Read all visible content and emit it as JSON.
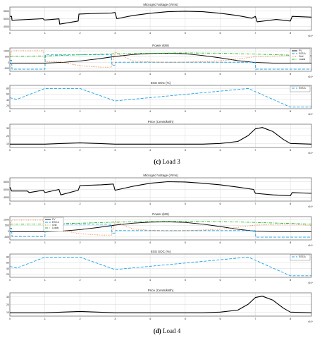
{
  "figures": [
    {
      "caption_label": "(c)",
      "caption_text": "Load 3",
      "panels": [
        {
          "title": "Microgrid Voltage (Vrms)",
          "yticks": [
            "5500",
            "5000",
            "4500"
          ],
          "xticks": [
            "0",
            "1",
            "2",
            "3",
            "4",
            "5",
            "6",
            "7",
            "8"
          ],
          "exponent": "×10⁴"
        },
        {
          "title": "Power (kW)",
          "yticks": [
            "1000",
            "500",
            "0",
            "-500"
          ],
          "xticks": [
            "0",
            "1",
            "2",
            "3",
            "4",
            "5",
            "6",
            "7",
            "8"
          ],
          "exponent": "×10⁴",
          "legend": [
            "PV",
            "ESS A",
            "Grid",
            "Loads"
          ]
        },
        {
          "title": "ESS SOC (%)",
          "yticks": [
            "80",
            "60",
            "40",
            "20"
          ],
          "xticks": [
            "0",
            "1",
            "2",
            "3",
            "4",
            "5",
            "6",
            "7",
            "8"
          ],
          "exponent": "×10⁴",
          "legend": [
            "ESS A"
          ]
        },
        {
          "title": "Price (Cents/kWh)",
          "yticks": [
            "30",
            "20",
            "10"
          ],
          "xticks": [
            "0",
            "1",
            "2",
            "3",
            "4",
            "5",
            "6",
            "7",
            "8"
          ],
          "exponent": "×10⁴"
        }
      ]
    },
    {
      "caption_label": "(d)",
      "caption_text": "Load 4",
      "panels": [
        {
          "title": "Microgrid Voltage (Vrms)",
          "yticks": [
            "5500",
            "5000",
            "4500"
          ],
          "xticks": [
            "0",
            "1",
            "2",
            "3",
            "4",
            "5",
            "6",
            "7",
            "8"
          ],
          "exponent": "×10⁴"
        },
        {
          "title": "Power (kW)",
          "yticks": [
            "1000",
            "500",
            "0",
            "-500"
          ],
          "xticks": [
            "0",
            "1",
            "2",
            "3",
            "4",
            "5",
            "6",
            "7",
            "8"
          ],
          "exponent": "×10⁴",
          "legend": [
            "PV",
            "ESS A",
            "Grid",
            "Loads"
          ]
        },
        {
          "title": "ESS SOC (%)",
          "yticks": [
            "80",
            "60",
            "40",
            "20"
          ],
          "xticks": [
            "0",
            "1",
            "2",
            "3",
            "4",
            "5",
            "6",
            "7",
            "8"
          ],
          "exponent": "×10⁴",
          "legend": [
            "ESS A"
          ]
        },
        {
          "title": "Price (Cents/kWh)",
          "yticks": [
            "30",
            "20",
            "10"
          ],
          "xticks": [
            "0",
            "1",
            "2",
            "3",
            "4",
            "5",
            "6",
            "7",
            "8"
          ],
          "exponent": "×10⁴"
        }
      ]
    }
  ],
  "colors": {
    "pv": "#000000",
    "ess": "#1aa3e8",
    "grid": "#ee7733",
    "loads": "#22bb22",
    "line": "#000000",
    "gridline": "#d9d9d9"
  },
  "chart_data": [
    {
      "type": "line",
      "title": "Microgrid Voltage (Vrms)",
      "figure": "(c)",
      "xlim": [
        0,
        8.6
      ],
      "ylim": [
        4300,
        5800
      ],
      "grid": true,
      "series": [
        {
          "x": [
            0,
            0.05,
            0.06,
            0.95,
            0.97,
            1.0,
            1.4,
            1.42,
            1.95,
            1.97,
            2.6,
            2.9,
            3.0,
            3.05,
            3.5,
            4.0,
            4.5,
            5.0,
            5.5,
            6.0,
            6.5,
            6.9,
            7.0,
            7.05,
            7.6,
            8.0,
            8.05,
            8.6
          ],
          "y": [
            5200,
            5200,
            4950,
            5050,
            4980,
            4970,
            5040,
            4700,
            4900,
            5350,
            5400,
            5420,
            5450,
            5050,
            5250,
            5400,
            5500,
            5530,
            5500,
            5400,
            5250,
            5080,
            5200,
            4850,
            5000,
            4900,
            5200,
            5150
          ]
        }
      ]
    },
    {
      "type": "line",
      "title": "Power (kW)",
      "figure": "(c)",
      "xlim": [
        0,
        8.6
      ],
      "ylim": [
        -600,
        1100
      ],
      "grid": true,
      "series": [
        {
          "name": "PV",
          "x": [
            0,
            1,
            1.5,
            2,
            2.5,
            3,
            3.5,
            4,
            4.5,
            5,
            5.5,
            6,
            6.5,
            7,
            7.5,
            8.6
          ],
          "y": [
            0,
            0,
            50,
            150,
            300,
            480,
            620,
            700,
            720,
            680,
            550,
            380,
            180,
            40,
            0,
            0
          ]
        },
        {
          "name": "ESS A",
          "x": [
            0,
            0.05,
            0.06,
            1.0,
            1.01,
            2.9,
            2.91,
            3.0,
            3.01,
            7.0,
            7.01,
            8.0,
            8.01,
            8.6
          ],
          "y": [
            200,
            200,
            -450,
            -450,
            600,
            600,
            -150,
            -150,
            60,
            60,
            -450,
            -450,
            -450,
            -450
          ]
        },
        {
          "name": "Grid",
          "x": [
            0,
            0.05,
            0.95,
            1.0,
            1.4,
            2.0,
            2.6,
            2.9,
            3.0,
            3.5,
            4.0,
            4.5,
            5.0,
            5.5,
            6.0,
            6.5,
            7.0,
            7.5,
            8.0,
            8.6
          ],
          "y": [
            350,
            900,
            900,
            100,
            100,
            -200,
            -300,
            -300,
            800,
            150,
            80,
            60,
            70,
            100,
            170,
            300,
            460,
            520,
            550,
            450
          ]
        },
        {
          "name": "Loads",
          "x": [
            0,
            1,
            2,
            3,
            4,
            5,
            6,
            7,
            8,
            8.6
          ],
          "y": [
            500,
            520,
            600,
            680,
            720,
            740,
            720,
            650,
            580,
            540
          ]
        }
      ]
    },
    {
      "type": "line",
      "title": "ESS SOC (%)",
      "figure": "(c)",
      "xlim": [
        0,
        8.6
      ],
      "ylim": [
        15,
        90
      ],
      "grid": true,
      "series": [
        {
          "name": "ESS A",
          "x": [
            0,
            0.2,
            1.0,
            2.0,
            3.0,
            6.8,
            8.0,
            8.6
          ],
          "y": [
            50,
            45,
            80,
            80,
            40,
            80,
            20,
            20
          ]
        }
      ]
    },
    {
      "type": "line",
      "title": "Price (Cents/kWh)",
      "figure": "(c)",
      "xlim": [
        0,
        8.6
      ],
      "ylim": [
        0,
        35
      ],
      "grid": true,
      "series": [
        {
          "x": [
            0,
            1,
            1.5,
            2,
            2.5,
            3,
            4,
            5,
            5.5,
            6,
            6.5,
            6.8,
            7,
            7.2,
            7.5,
            7.8,
            8,
            8.6
          ],
          "y": [
            5,
            5,
            6,
            7,
            6,
            5,
            5,
            5,
            5,
            6,
            9,
            18,
            28,
            30,
            24,
            12,
            6,
            5
          ]
        }
      ]
    },
    {
      "type": "line",
      "title": "Microgrid Voltage (Vrms)",
      "figure": "(d)",
      "xlim": [
        0,
        8.6
      ],
      "ylim": [
        4300,
        5800
      ],
      "grid": true,
      "series": [
        {
          "x": [
            0,
            0.05,
            0.5,
            0.55,
            0.95,
            1.0,
            1.4,
            1.45,
            1.95,
            2.0,
            2.6,
            2.95,
            3.0,
            3.5,
            4.0,
            4.5,
            5.0,
            5.5,
            6.0,
            6.5,
            6.95,
            7.0,
            7.5,
            8.0,
            8.05,
            8.6
          ],
          "y": [
            5200,
            4950,
            4950,
            4850,
            5000,
            4850,
            5050,
            4700,
            5000,
            5300,
            5350,
            5400,
            5000,
            5250,
            5450,
            5550,
            5530,
            5450,
            5350,
            5200,
            5050,
            4800,
            4700,
            4650,
            4850,
            4800
          ]
        }
      ]
    },
    {
      "type": "line",
      "title": "Power (kW)",
      "figure": "(d)",
      "xlim": [
        0,
        8.6
      ],
      "ylim": [
        -600,
        1100
      ],
      "grid": true,
      "series": [
        {
          "name": "PV",
          "x": [
            0,
            1,
            1.5,
            2,
            2.5,
            3,
            3.5,
            4,
            4.5,
            5,
            5.5,
            6,
            6.5,
            7,
            7.5,
            8.6
          ],
          "y": [
            0,
            0,
            50,
            150,
            300,
            480,
            620,
            700,
            720,
            680,
            550,
            380,
            180,
            40,
            0,
            0
          ]
        },
        {
          "name": "ESS A",
          "x": [
            0,
            0.05,
            0.06,
            1.0,
            1.01,
            2.9,
            2.91,
            3.0,
            3.01,
            7.0,
            7.01,
            8.0,
            8.01,
            8.6
          ],
          "y": [
            250,
            250,
            -350,
            -350,
            550,
            550,
            -100,
            -100,
            80,
            80,
            -400,
            -400,
            -400,
            -400
          ]
        },
        {
          "name": "Grid",
          "x": [
            0,
            0.05,
            0.95,
            1.0,
            1.4,
            2.0,
            2.6,
            2.9,
            3.0,
            3.5,
            4.0,
            4.5,
            5.0,
            5.5,
            6.0,
            6.5,
            7.0,
            7.5,
            8.0,
            8.6
          ],
          "y": [
            400,
            850,
            850,
            150,
            150,
            -150,
            -250,
            -250,
            750,
            200,
            100,
            60,
            80,
            120,
            180,
            320,
            480,
            530,
            560,
            460
          ]
        },
        {
          "name": "Loads",
          "x": [
            0,
            1,
            2,
            3,
            4,
            5,
            6,
            7,
            8,
            8.6
          ],
          "y": [
            550,
            560,
            620,
            700,
            740,
            760,
            740,
            680,
            600,
            560
          ]
        }
      ]
    },
    {
      "type": "line",
      "title": "ESS SOC (%)",
      "figure": "(d)",
      "xlim": [
        0,
        8.6
      ],
      "ylim": [
        15,
        90
      ],
      "grid": true,
      "series": [
        {
          "name": "ESS A",
          "x": [
            0,
            0.2,
            1.0,
            2.0,
            3.0,
            6.8,
            8.0,
            8.6
          ],
          "y": [
            50,
            45,
            80,
            80,
            40,
            80,
            20,
            20
          ]
        }
      ]
    },
    {
      "type": "line",
      "title": "Price (Cents/kWh)",
      "figure": "(d)",
      "xlim": [
        0,
        8.6
      ],
      "ylim": [
        0,
        35
      ],
      "grid": true,
      "series": [
        {
          "x": [
            0,
            1,
            1.5,
            2,
            2.5,
            3,
            4,
            5,
            5.5,
            6,
            6.5,
            6.8,
            7,
            7.2,
            7.5,
            7.8,
            8,
            8.6
          ],
          "y": [
            5,
            5,
            6,
            7,
            6,
            5,
            5,
            5,
            5,
            6,
            9,
            18,
            28,
            30,
            24,
            12,
            6,
            5
          ]
        }
      ]
    }
  ]
}
